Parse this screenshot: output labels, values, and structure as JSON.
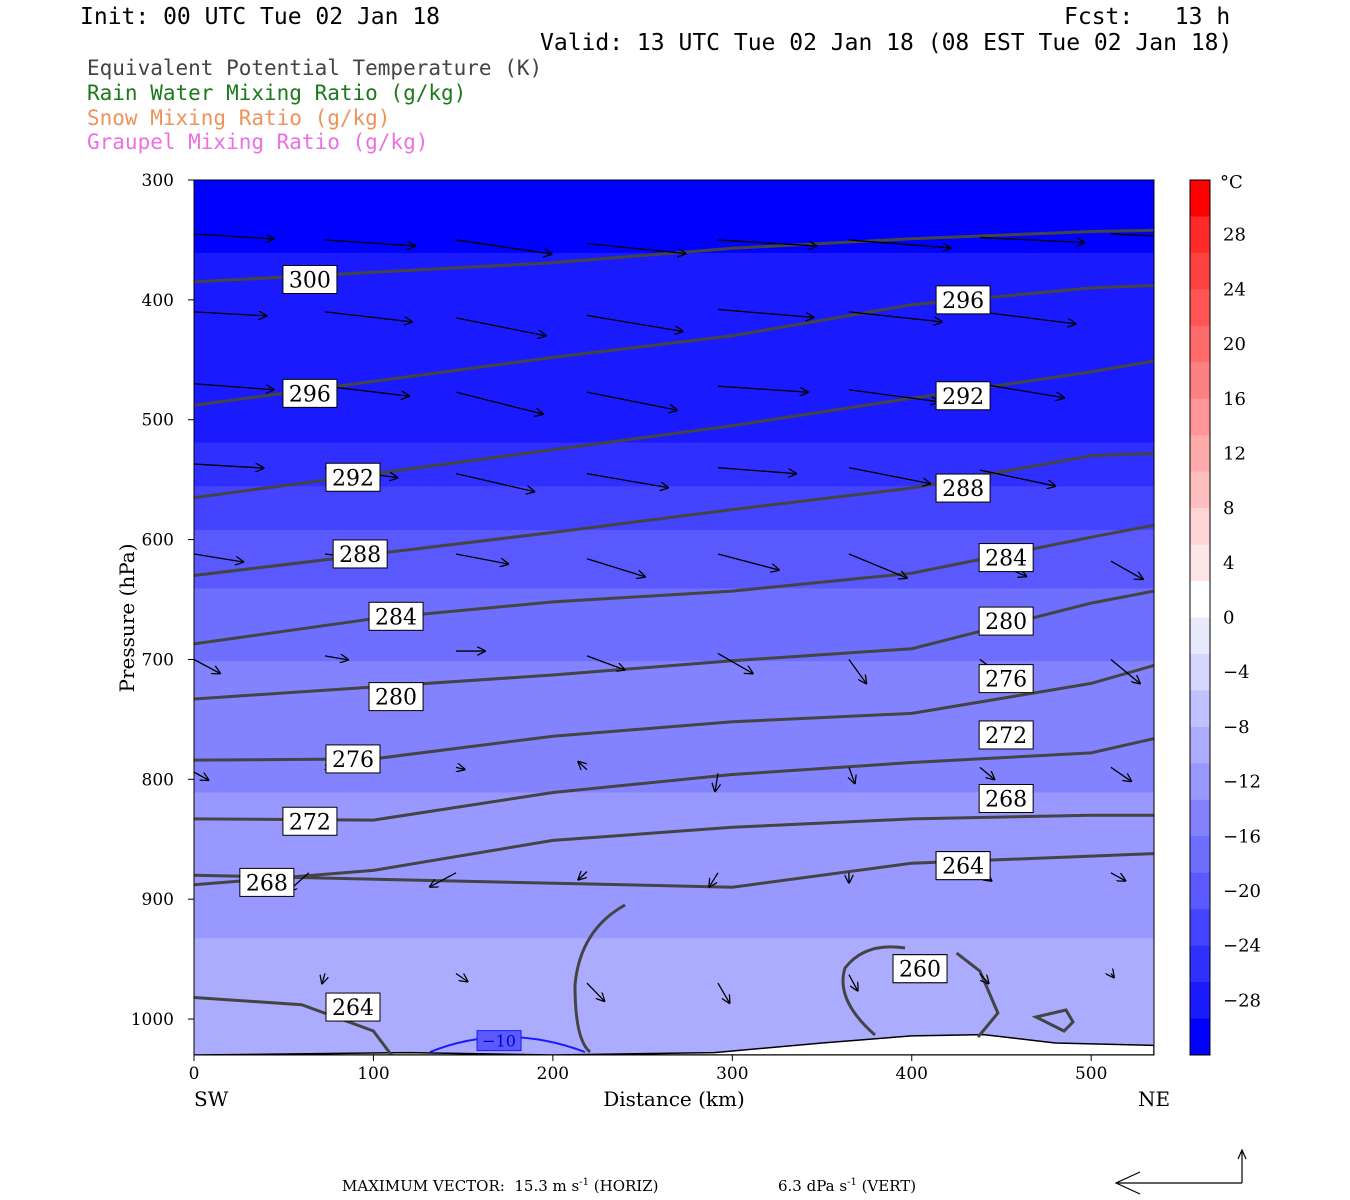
{
  "header": {
    "init": "Init: 00 UTC Tue 02 Jan 18",
    "fcst": "Fcst:   13 h",
    "valid": "Valid: 13 UTC Tue 02 Jan 18 (08 EST Tue 02 Jan 18)"
  },
  "legend": {
    "items": [
      {
        "label": "Equivalent Potential Temperature (K)",
        "color": "#444444"
      },
      {
        "label": "Rain Water Mixing Ratio (g/kg)",
        "color": "#1a7a1a"
      },
      {
        "label": "Snow Mixing Ratio (g/kg)",
        "color": "#f0925a"
      },
      {
        "label": "Graupel Mixing Ratio (g/kg)",
        "color": "#ec6fe4"
      }
    ]
  },
  "footer": {
    "max_vector_label": "MAXIMUM VECTOR:",
    "horiz_value": "15.3 m s",
    "horiz_unit_exp": "-1",
    "horiz_suffix": " (HORIZ)",
    "vert_value": "6.3 dPa s",
    "vert_unit_exp": "-1",
    "vert_suffix": " (VERT)"
  },
  "chart_data": {
    "type": "heatmap",
    "xlabel": "Distance (km)",
    "ylabel": "Pressure (hPa)",
    "x_ticks": [
      0,
      100,
      200,
      300,
      400,
      500
    ],
    "y_ticks": [
      300,
      400,
      500,
      600,
      700,
      800,
      900,
      1000
    ],
    "xlim": [
      0,
      535
    ],
    "ylim": [
      300,
      1030
    ],
    "x_end_labels": {
      "left": "SW",
      "right": "NE"
    },
    "colorbar": {
      "unit": "°C",
      "tick_labels": [
        "28",
        "24",
        "20",
        "16",
        "12",
        "8",
        "4",
        "0",
        "−4",
        "−8",
        "−12",
        "−16",
        "−20",
        "−24",
        "−28"
      ],
      "tick_values": [
        28,
        24,
        20,
        16,
        12,
        8,
        4,
        0,
        -4,
        -8,
        -12,
        -16,
        -20,
        -24,
        -28
      ],
      "range": [
        -32,
        32
      ],
      "colors": [
        "#ff0000",
        "#ff2a2a",
        "#ff4040",
        "#ff5555",
        "#ff6a6a",
        "#ff8080",
        "#ff9595",
        "#ffaaaa",
        "#ffbfbf",
        "#ffd4d4",
        "#ffe6e6",
        "#ffffff",
        "#eaeaff",
        "#d6d6ff",
        "#c1c1ff",
        "#acacff",
        "#9898ff",
        "#8383ff",
        "#6e6eff",
        "#5959ff",
        "#4444ff",
        "#2f2fff",
        "#1a1aff",
        "#0000ff"
      ]
    },
    "temperature_field": [
      {
        "p": 300,
        "t": -30
      },
      {
        "p": 500,
        "t": -28
      },
      {
        "p": 550,
        "t": -24
      },
      {
        "p": 620,
        "t": -20
      },
      {
        "p": 700,
        "t": -16
      },
      {
        "p": 780,
        "t": -14
      },
      {
        "p": 880,
        "t": -12
      },
      {
        "p": 960,
        "t": -10
      },
      {
        "p": 1030,
        "t": -8
      }
    ],
    "isotherm_labels": [
      {
        "label": "−10",
        "x": 170,
        "p": 1018
      }
    ],
    "theta_e_contours": [
      {
        "level": 300,
        "points": [
          [
            0,
            385
          ],
          [
            100,
            377
          ],
          [
            200,
            369
          ],
          [
            300,
            357
          ],
          [
            400,
            349
          ],
          [
            500,
            343
          ],
          [
            535,
            342
          ]
        ],
        "label_at": [
          49,
          383
        ]
      },
      {
        "level": 296,
        "points": [
          [
            0,
            488
          ],
          [
            100,
            468
          ],
          [
            200,
            448
          ],
          [
            300,
            430
          ],
          [
            400,
            404
          ],
          [
            500,
            390
          ],
          [
            535,
            388
          ]
        ],
        "label_at": [
          49,
          478
        ]
      },
      {
        "level": 292,
        "points": [
          [
            0,
            565
          ],
          [
            100,
            545
          ],
          [
            200,
            525
          ],
          [
            300,
            505
          ],
          [
            400,
            482
          ],
          [
            500,
            460
          ],
          [
            535,
            451
          ]
        ],
        "label_at": [
          73,
          548
        ]
      },
      {
        "level": 288,
        "points": [
          [
            0,
            630
          ],
          [
            100,
            612
          ],
          [
            200,
            594
          ],
          [
            300,
            575
          ],
          [
            400,
            557
          ],
          [
            500,
            530
          ],
          [
            535,
            528
          ]
        ],
        "label_at": [
          77,
          612
        ]
      },
      {
        "level": 284,
        "points": [
          [
            0,
            687
          ],
          [
            100,
            666
          ],
          [
            200,
            652
          ],
          [
            300,
            643
          ],
          [
            400,
            628
          ],
          [
            500,
            598
          ],
          [
            535,
            588
          ]
        ],
        "label_at": [
          97,
          664
        ]
      },
      {
        "level": 280,
        "points": [
          [
            0,
            733
          ],
          [
            100,
            723
          ],
          [
            200,
            713
          ],
          [
            300,
            701
          ],
          [
            400,
            691
          ],
          [
            500,
            653
          ],
          [
            535,
            643
          ]
        ],
        "label_at": [
          97,
          731
        ]
      },
      {
        "level": 276,
        "points": [
          [
            0,
            784
          ],
          [
            100,
            783
          ],
          [
            200,
            764
          ],
          [
            300,
            752
          ],
          [
            400,
            745
          ],
          [
            500,
            720
          ],
          [
            535,
            705
          ]
        ],
        "label_at": [
          73,
          783
        ]
      },
      {
        "level": 272,
        "points": [
          [
            0,
            833
          ],
          [
            100,
            834
          ],
          [
            200,
            811
          ],
          [
            300,
            796
          ],
          [
            400,
            786
          ],
          [
            500,
            778
          ],
          [
            535,
            766
          ]
        ],
        "label_at": [
          49,
          835
        ]
      },
      {
        "level": 268,
        "points": [
          [
            0,
            888
          ],
          [
            100,
            876
          ],
          [
            200,
            851
          ],
          [
            300,
            840
          ],
          [
            400,
            833
          ],
          [
            500,
            830
          ],
          [
            535,
            830
          ]
        ],
        "label_at": [
          25,
          886
        ]
      },
      {
        "level": 264,
        "points": [
          [
            0,
            880
          ],
          [
            300,
            890
          ],
          [
            400,
            870
          ],
          [
            535,
            862
          ]
        ],
        "label_at": [
          413,
          872
        ]
      },
      {
        "level": 264,
        "points": [
          [
            0,
            982
          ],
          [
            60,
            988
          ],
          [
            100,
            1010
          ],
          [
            110,
            1030
          ]
        ],
        "label_at": [
          73,
          990
        ]
      },
      {
        "level": 260,
        "points": [
          [
            425,
            945
          ],
          [
            438,
            960
          ],
          [
            448,
            995
          ],
          [
            437,
            1015
          ]
        ],
        "label_at": [
          389,
          958
        ]
      }
    ],
    "theta_e_label_texts": {
      "right_side": [
        {
          "label": "296",
          "x": 413,
          "p": 400
        },
        {
          "label": "292",
          "x": 413,
          "p": 480
        },
        {
          "label": "288",
          "x": 413,
          "p": 557
        },
        {
          "label": "284",
          "x": 437,
          "p": 615
        },
        {
          "label": "280",
          "x": 437,
          "p": 668
        },
        {
          "label": "276",
          "x": 437,
          "p": 716
        },
        {
          "label": "272",
          "x": 437,
          "p": 763
        },
        {
          "label": "268",
          "x": 437,
          "p": 816
        },
        {
          "label": "264",
          "x": 413,
          "p": 872
        },
        {
          "label": "260",
          "x": 389,
          "p": 958
        }
      ]
    },
    "wind_vectors": [
      {
        "x": 0,
        "p": 345,
        "u": 55,
        "w": -5
      },
      {
        "x": 73,
        "p": 350,
        "u": 62,
        "w": -6
      },
      {
        "x": 146,
        "p": 350,
        "u": 66,
        "w": -14
      },
      {
        "x": 219,
        "p": 353,
        "u": 68,
        "w": -10
      },
      {
        "x": 292,
        "p": 350,
        "u": 68,
        "w": -6
      },
      {
        "x": 365,
        "p": 350,
        "u": 70,
        "w": -8
      },
      {
        "x": 438,
        "p": 348,
        "u": 72,
        "w": -5
      },
      {
        "x": 511,
        "p": 345,
        "u": 60,
        "w": -4
      },
      {
        "x": 0,
        "p": 410,
        "u": 50,
        "w": -4
      },
      {
        "x": 73,
        "p": 410,
        "u": 60,
        "w": -10
      },
      {
        "x": 146,
        "p": 415,
        "u": 62,
        "w": -18
      },
      {
        "x": 219,
        "p": 413,
        "u": 66,
        "w": -16
      },
      {
        "x": 292,
        "p": 408,
        "u": 66,
        "w": -8
      },
      {
        "x": 365,
        "p": 410,
        "u": 64,
        "w": -10
      },
      {
        "x": 438,
        "p": 410,
        "u": 66,
        "w": -12
      },
      {
        "x": 0,
        "p": 470,
        "u": 55,
        "w": -6
      },
      {
        "x": 73,
        "p": 472,
        "u": 58,
        "w": -10
      },
      {
        "x": 146,
        "p": 477,
        "u": 60,
        "w": -22
      },
      {
        "x": 219,
        "p": 477,
        "u": 62,
        "w": -18
      },
      {
        "x": 292,
        "p": 472,
        "u": 62,
        "w": -6
      },
      {
        "x": 365,
        "p": 475,
        "u": 62,
        "w": -12
      },
      {
        "x": 438,
        "p": 470,
        "u": 58,
        "w": -14
      },
      {
        "x": 0,
        "p": 537,
        "u": 48,
        "w": -4
      },
      {
        "x": 73,
        "p": 540,
        "u": 50,
        "w": -10
      },
      {
        "x": 146,
        "p": 545,
        "u": 54,
        "w": -18
      },
      {
        "x": 219,
        "p": 545,
        "u": 56,
        "w": -14
      },
      {
        "x": 292,
        "p": 540,
        "u": 54,
        "w": -6
      },
      {
        "x": 365,
        "p": 540,
        "u": 56,
        "w": -16
      },
      {
        "x": 438,
        "p": 542,
        "u": 52,
        "w": -16
      },
      {
        "x": 0,
        "p": 612,
        "u": 34,
        "w": -8
      },
      {
        "x": 73,
        "p": 612,
        "u": 32,
        "w": -6
      },
      {
        "x": 146,
        "p": 612,
        "u": 36,
        "w": -10
      },
      {
        "x": 219,
        "p": 616,
        "u": 40,
        "w": -18
      },
      {
        "x": 292,
        "p": 612,
        "u": 42,
        "w": -16
      },
      {
        "x": 365,
        "p": 612,
        "u": 40,
        "w": -24
      },
      {
        "x": 438,
        "p": 614,
        "u": 32,
        "w": -20
      },
      {
        "x": 511,
        "p": 618,
        "u": 22,
        "w": -18
      },
      {
        "x": 0,
        "p": 700,
        "u": 18,
        "w": -14
      },
      {
        "x": 73,
        "p": 697,
        "u": 16,
        "w": -4
      },
      {
        "x": 146,
        "p": 693,
        "u": 20,
        "w": 0
      },
      {
        "x": 219,
        "p": 697,
        "u": 26,
        "w": -14
      },
      {
        "x": 292,
        "p": 695,
        "u": 24,
        "w": -20
      },
      {
        "x": 365,
        "p": 700,
        "u": 12,
        "w": -24
      },
      {
        "x": 438,
        "p": 700,
        "u": 22,
        "w": -24
      },
      {
        "x": 511,
        "p": 700,
        "u": 20,
        "w": -24
      },
      {
        "x": 0,
        "p": 794,
        "u": 10,
        "w": -8
      },
      {
        "x": 73,
        "p": 788,
        "u": 6,
        "w": -4
      },
      {
        "x": 146,
        "p": 790,
        "u": 6,
        "w": -2
      },
      {
        "x": 219,
        "p": 792,
        "u": -6,
        "w": 8
      },
      {
        "x": 292,
        "p": 795,
        "u": -2,
        "w": -18
      },
      {
        "x": 365,
        "p": 790,
        "u": 4,
        "w": -16
      },
      {
        "x": 438,
        "p": 790,
        "u": 10,
        "w": -12
      },
      {
        "x": 511,
        "p": 790,
        "u": 14,
        "w": -14
      },
      {
        "x": 64,
        "p": 878,
        "u": -14,
        "w": -18
      },
      {
        "x": 146,
        "p": 878,
        "u": -18,
        "w": -14
      },
      {
        "x": 219,
        "p": 877,
        "u": -6,
        "w": -8
      },
      {
        "x": 292,
        "p": 878,
        "u": -6,
        "w": -14
      },
      {
        "x": 365,
        "p": 878,
        "u": 0,
        "w": -10
      },
      {
        "x": 438,
        "p": 878,
        "u": 8,
        "w": -8
      },
      {
        "x": 511,
        "p": 878,
        "u": 10,
        "w": -8
      },
      {
        "x": 73,
        "p": 962,
        "u": -2,
        "w": -10
      },
      {
        "x": 146,
        "p": 962,
        "u": 8,
        "w": -8
      },
      {
        "x": 219,
        "p": 970,
        "u": 12,
        "w": -18
      },
      {
        "x": 292,
        "p": 970,
        "u": 8,
        "w": -20
      },
      {
        "x": 365,
        "p": 963,
        "u": 6,
        "w": -16
      },
      {
        "x": 438,
        "p": 962,
        "u": 6,
        "w": -10
      },
      {
        "x": 511,
        "p": 962,
        "u": 2,
        "w": -4
      }
    ],
    "terrain_p": [
      [
        0,
        1030
      ],
      [
        120,
        1028
      ],
      [
        200,
        1030
      ],
      [
        290,
        1028
      ],
      [
        350,
        1020
      ],
      [
        400,
        1014
      ],
      [
        440,
        1013
      ],
      [
        480,
        1020
      ],
      [
        535,
        1022
      ]
    ]
  }
}
